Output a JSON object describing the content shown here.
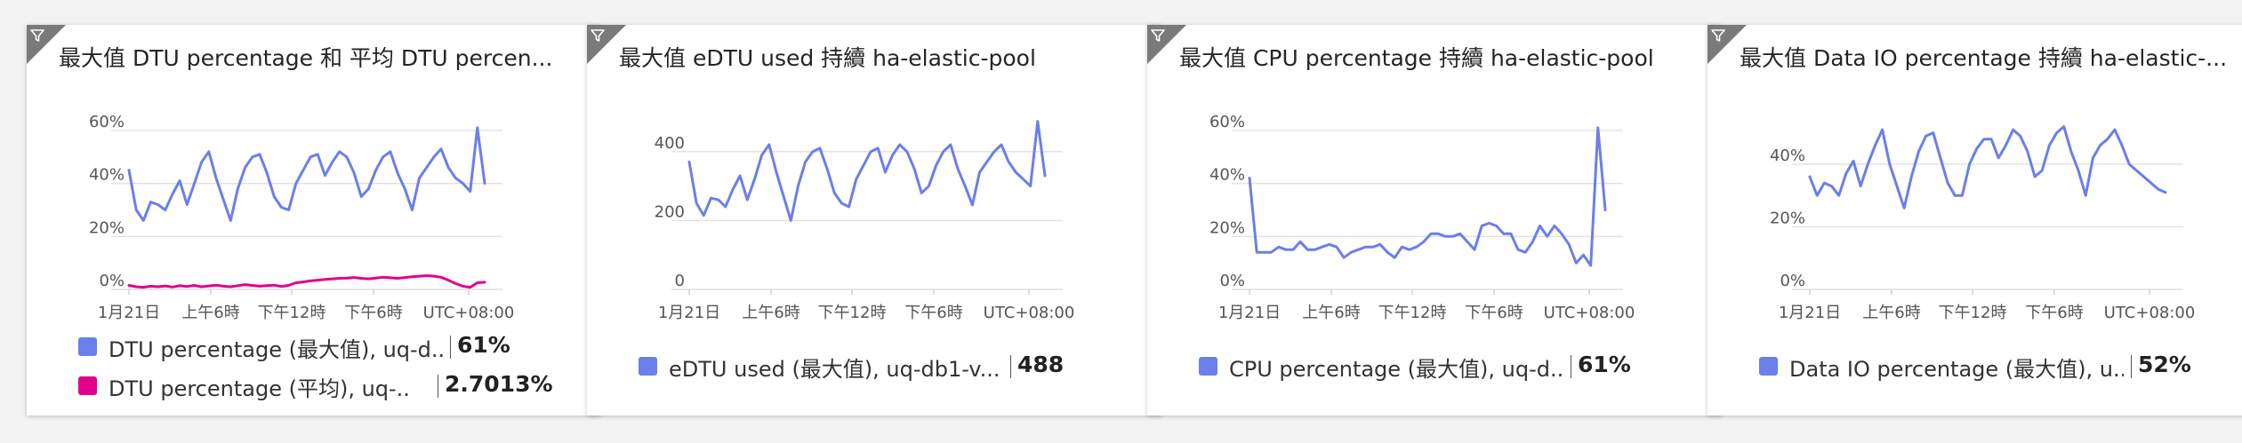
{
  "colors": {
    "series_blue": "#6a7fea",
    "series_magenta": "#e3008c",
    "grid": "#e1e1e1",
    "axis_text": "#555555"
  },
  "icons": {
    "tile_corner": "filter-icon"
  },
  "tiles": [
    {
      "title": "最大值 DTU percentage 和 平均 DTU percen...",
      "legend": [
        {
          "label": "DTU percentage (最大值), uq-d...",
          "value": "61%",
          "color": "#6a7fea"
        },
        {
          "label": "DTU percentage (平均), uq-...",
          "value": "2.7013%",
          "color": "#e3008c"
        }
      ]
    },
    {
      "title": "最大值 eDTU used 持續 ha-elastic-pool",
      "legend": [
        {
          "label": "eDTU used (最大值), uq-db1-v...",
          "value": "488",
          "color": "#6a7fea"
        }
      ]
    },
    {
      "title": "最大值 CPU percentage 持續 ha-elastic-pool",
      "legend": [
        {
          "label": "CPU percentage (最大值), uq-d...",
          "value": "61%",
          "color": "#6a7fea"
        }
      ]
    },
    {
      "title": "最大值 Data IO percentage 持續 ha-elastic-...",
      "legend": [
        {
          "label": "Data IO percentage (最大值), u...",
          "value": "52%",
          "color": "#6a7fea"
        }
      ]
    }
  ],
  "chart_data": [
    {
      "type": "line",
      "x_tick_labels": [
        "1月21日",
        "上午6時",
        "下午12時",
        "下午6時",
        "UTC+08:00"
      ],
      "y_tick_labels": [
        "0%",
        "20%",
        "40%",
        "60%"
      ],
      "ylim": [
        0,
        65
      ],
      "grid": true,
      "series": [
        {
          "name": "DTU percentage (最大值), uq-d...",
          "values": [
            45,
            30,
            26,
            33,
            32,
            30,
            36,
            41,
            32,
            40,
            48,
            52,
            42,
            34,
            26,
            38,
            46,
            50,
            51,
            44,
            35,
            31,
            30,
            40,
            45,
            50,
            51,
            43,
            48,
            52,
            50,
            44,
            35,
            38,
            45,
            50,
            52,
            44,
            38,
            30,
            42,
            46,
            50,
            53,
            46,
            42,
            40,
            37,
            61,
            40
          ]
        },
        {
          "name": "DTU percentage (平均), uq-...",
          "values": [
            1.5,
            1.0,
            0.8,
            1.2,
            1.0,
            1.3,
            0.9,
            1.4,
            1.1,
            1.5,
            1.0,
            1.3,
            1.6,
            1.2,
            1.0,
            1.4,
            1.8,
            1.5,
            1.2,
            1.4,
            1.6,
            1.1,
            1.5,
            2.5,
            2.8,
            3.2,
            3.5,
            3.8,
            4.0,
            4.2,
            4.3,
            4.5,
            4.2,
            4.0,
            4.3,
            4.6,
            4.4,
            4.2,
            4.5,
            4.8,
            5.0,
            5.2,
            5.0,
            4.6,
            3.5,
            2.2,
            1.2,
            0.8,
            2.5,
            2.7
          ]
        }
      ]
    },
    {
      "type": "line",
      "x_tick_labels": [
        "1月21日",
        "上午6時",
        "下午12時",
        "下午6時",
        "UTC+08:00"
      ],
      "y_tick_labels": [
        "0",
        "200",
        "400"
      ],
      "ylim": [
        0,
        500
      ],
      "grid": true,
      "series": [
        {
          "name": "eDTU used (最大值), uq-db1-v...",
          "values": [
            370,
            250,
            215,
            265,
            260,
            240,
            290,
            330,
            260,
            320,
            390,
            420,
            340,
            270,
            200,
            300,
            370,
            400,
            410,
            350,
            280,
            250,
            240,
            320,
            360,
            400,
            410,
            340,
            390,
            420,
            400,
            350,
            280,
            300,
            360,
            400,
            420,
            350,
            300,
            245,
            340,
            370,
            400,
            420,
            370,
            340,
            320,
            300,
            488,
            330
          ]
        }
      ]
    },
    {
      "type": "line",
      "x_tick_labels": [
        "1月21日",
        "上午6時",
        "下午12時",
        "下午6時",
        "UTC+08:00"
      ],
      "y_tick_labels": [
        "0%",
        "20%",
        "40%",
        "60%"
      ],
      "ylim": [
        0,
        65
      ],
      "grid": true,
      "series": [
        {
          "name": "CPU percentage (最大值), uq-d...",
          "values": [
            42,
            14,
            14,
            14,
            16,
            15,
            15,
            18,
            15,
            15,
            16,
            17,
            16,
            12,
            14,
            15,
            16,
            16,
            17,
            14,
            12,
            16,
            15,
            16,
            18,
            21,
            21,
            20,
            20,
            21,
            18,
            15,
            24,
            25,
            24,
            21,
            21,
            15,
            14,
            18,
            24,
            20,
            24,
            21,
            17,
            10,
            13,
            9,
            61,
            30
          ]
        }
      ]
    },
    {
      "type": "line",
      "x_tick_labels": [
        "1月21日",
        "上午6時",
        "下午12時",
        "下午6時",
        "UTC+08:00"
      ],
      "y_tick_labels": [
        "0%",
        "20%",
        "40%"
      ],
      "ylim": [
        0,
        55
      ],
      "grid": true,
      "series": [
        {
          "name": "Data IO percentage (最大值), u...",
          "values": [
            36,
            30,
            34,
            33,
            30,
            37,
            41,
            33,
            40,
            46,
            51,
            40,
            33,
            26,
            36,
            44,
            49,
            50,
            42,
            34,
            30,
            30,
            40,
            45,
            48,
            48,
            42,
            46,
            51,
            49,
            44,
            36,
            38,
            46,
            50,
            52,
            44,
            38,
            30,
            42,
            46,
            48,
            51,
            46,
            40,
            38,
            36,
            34,
            32,
            31
          ]
        }
      ]
    }
  ]
}
